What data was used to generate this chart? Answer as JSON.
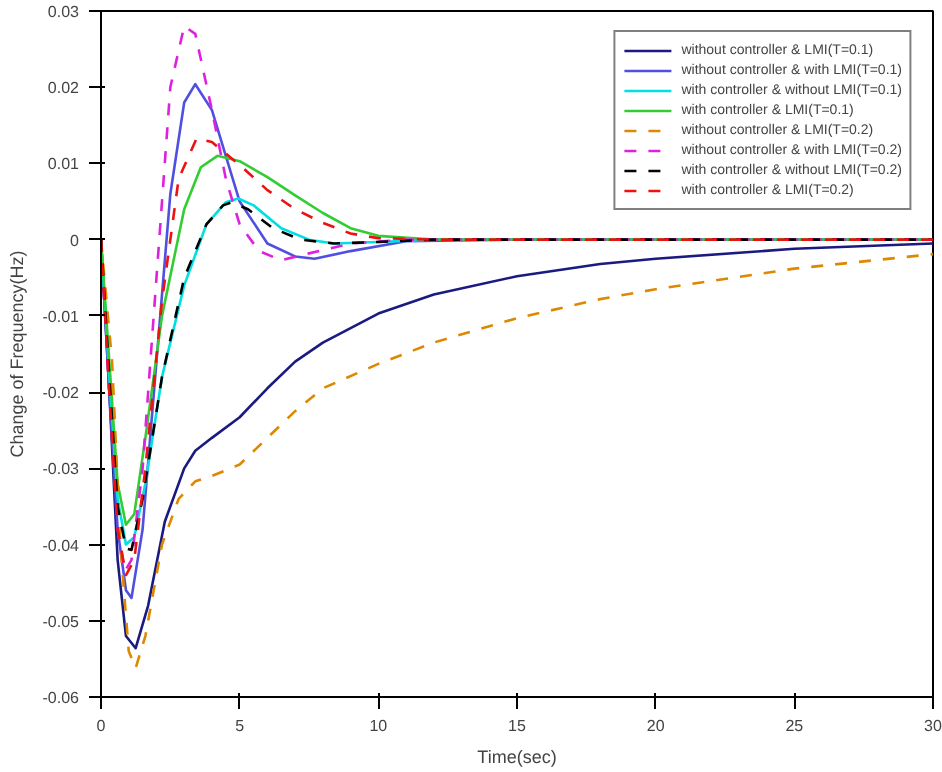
{
  "chart_data": {
    "type": "line",
    "xlabel": "Time(sec)",
    "ylabel": "Change of Frequency(Hz)",
    "xlim": [
      0,
      30
    ],
    "ylim": [
      -0.06,
      0.03
    ],
    "xticks": [
      0,
      5,
      10,
      15,
      20,
      25,
      30
    ],
    "yticks": [
      -0.06,
      -0.05,
      -0.04,
      -0.03,
      -0.02,
      -0.01,
      0,
      0.01,
      0.02,
      0.03
    ],
    "grid": false,
    "legend": "top right",
    "series": [
      {
        "name": "without controller & LMI(T=0.1)",
        "color": "#1a1a80",
        "line_style": "solid",
        "x": [
          0,
          0.3,
          0.6,
          0.9,
          1.25,
          1.7,
          2.3,
          3,
          3.4,
          4,
          5,
          6,
          7,
          8,
          10,
          12,
          15,
          18,
          20,
          25,
          30
        ],
        "values": [
          0,
          -0.02,
          -0.042,
          -0.052,
          -0.0536,
          -0.048,
          -0.037,
          -0.03,
          -0.0277,
          -0.026,
          -0.0233,
          -0.0195,
          -0.016,
          -0.0135,
          -0.0097,
          -0.0072,
          -0.0048,
          -0.0032,
          -0.0025,
          -0.0012,
          -0.0005
        ]
      },
      {
        "name": "without controller & with LMI(T=0.1)",
        "color": "#5050e0",
        "line_style": "solid",
        "x": [
          0,
          0.3,
          0.6,
          0.9,
          1.1,
          1.5,
          2,
          2.5,
          3,
          3.4,
          4,
          4.5,
          5,
          6,
          7,
          7.7,
          9,
          11,
          15,
          30
        ],
        "values": [
          0,
          -0.02,
          -0.038,
          -0.046,
          -0.047,
          -0.038,
          -0.016,
          0.006,
          0.018,
          0.0204,
          0.017,
          0.011,
          0.005,
          -0.0005,
          -0.0022,
          -0.0025,
          -0.0015,
          -0.0002,
          0,
          0
        ]
      },
      {
        "name": "with controller & without LMI(T=0.1)",
        "color": "#00e0e0",
        "line_style": "solid",
        "x": [
          0,
          0.3,
          0.6,
          0.9,
          1.2,
          1.6,
          2.2,
          3,
          3.8,
          4.5,
          4.95,
          5.5,
          6.5,
          7.5,
          8.4,
          10,
          12,
          15,
          30
        ],
        "values": [
          0,
          -0.018,
          -0.034,
          -0.04,
          -0.039,
          -0.032,
          -0.018,
          -0.006,
          0.002,
          0.0049,
          0.0054,
          0.0045,
          0.0015,
          0,
          -0.0005,
          -0.0003,
          0,
          0,
          0
        ]
      },
      {
        "name": "with controller & LMI(T=0.1)",
        "color": "#33cc33",
        "line_style": "solid",
        "x": [
          0,
          0.3,
          0.6,
          0.9,
          1.2,
          1.6,
          2.2,
          3,
          3.6,
          4.2,
          5,
          6,
          7,
          8,
          9,
          10,
          12,
          15,
          30
        ],
        "values": [
          0,
          -0.016,
          -0.032,
          -0.0374,
          -0.036,
          -0.026,
          -0.01,
          0.004,
          0.0095,
          0.011,
          0.0103,
          0.0082,
          0.0058,
          0.0035,
          0.0015,
          0.0005,
          0,
          0,
          0
        ]
      },
      {
        "name": "without controller & LMI(T=0.2)",
        "color": "#dd8800",
        "line_style": "dashed",
        "x": [
          0,
          0.4,
          0.7,
          1,
          1.25,
          1.6,
          2.2,
          2.8,
          3.4,
          4,
          5,
          6,
          7,
          8,
          10,
          12,
          15,
          18,
          20,
          25,
          30
        ],
        "values": [
          0,
          -0.016,
          -0.04,
          -0.054,
          -0.0562,
          -0.052,
          -0.04,
          -0.034,
          -0.0317,
          -0.031,
          -0.0295,
          -0.026,
          -0.0225,
          -0.0195,
          -0.0163,
          -0.0135,
          -0.0103,
          -0.0078,
          -0.0065,
          -0.0038,
          -0.0019
        ]
      },
      {
        "name": "without controller & with LMI(T=0.2)",
        "color": "#dd22dd",
        "line_style": "dashed",
        "x": [
          0,
          0.3,
          0.6,
          0.86,
          1.1,
          1.5,
          2,
          2.5,
          3,
          3.4,
          4,
          4.5,
          5,
          5.7,
          6.5,
          7.5,
          9,
          11,
          15,
          30
        ],
        "values": [
          0,
          -0.02,
          -0.038,
          -0.0435,
          -0.042,
          -0.03,
          -0.005,
          0.02,
          0.028,
          0.027,
          0.017,
          0.008,
          0.002,
          -0.0015,
          -0.0027,
          -0.0018,
          -0.0005,
          0,
          0,
          0
        ]
      },
      {
        "name": "with controller & without LMI(T=0.2)",
        "color": "#000000",
        "line_style": "dashed",
        "x": [
          0,
          0.3,
          0.6,
          0.9,
          1.1,
          1.5,
          2.2,
          3,
          3.8,
          4.4,
          4.7,
          5.3,
          6.2,
          7.2,
          8.4,
          10,
          12,
          15,
          30
        ],
        "values": [
          0,
          -0.018,
          -0.035,
          -0.0405,
          -0.0407,
          -0.034,
          -0.018,
          -0.005,
          0.002,
          0.0045,
          0.0049,
          0.004,
          0.0015,
          0,
          -0.0005,
          -0.0003,
          0,
          0,
          0
        ]
      },
      {
        "name": "with controller & LMI(T=0.2)",
        "color": "#ee1111",
        "line_style": "dashed",
        "x": [
          0,
          0.3,
          0.6,
          0.9,
          1.2,
          1.6,
          2.2,
          2.8,
          3.45,
          4,
          5,
          6,
          7,
          8,
          9,
          10,
          12,
          15,
          30
        ],
        "values": [
          0,
          -0.02,
          -0.038,
          -0.044,
          -0.042,
          -0.03,
          -0.008,
          0.008,
          0.0133,
          0.0128,
          0.0098,
          0.0065,
          0.004,
          0.0022,
          0.0008,
          0.0002,
          0,
          0,
          0
        ]
      }
    ]
  }
}
